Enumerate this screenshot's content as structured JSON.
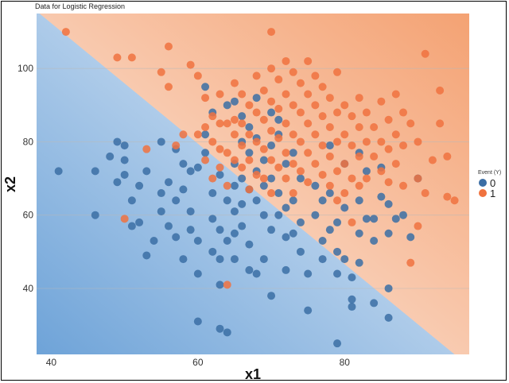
{
  "chart_data": {
    "type": "scatter",
    "title": "Data for Logistic Regression",
    "xlabel": "x1",
    "ylabel": "x2",
    "xlim": [
      38,
      97
    ],
    "ylim": [
      22,
      115
    ],
    "x_ticks": [
      40,
      60,
      80
    ],
    "y_ticks": [
      40,
      60,
      80,
      100
    ],
    "grid": "horizontal",
    "legend": {
      "title": "Event (Y)",
      "placement": "right",
      "entries": [
        "0",
        "1"
      ]
    },
    "colors": {
      "series_0": "#3b6ea5",
      "series_1": "#f0723f",
      "region_0": "#7fb0df",
      "region_1": "#f5a374"
    },
    "decision_boundary": {
      "points": [
        [
          39,
          114
        ],
        [
          95,
          22
        ]
      ]
    },
    "series": [
      {
        "name": "0",
        "points": [
          [
            41,
            72
          ],
          [
            46,
            72
          ],
          [
            46,
            60
          ],
          [
            48,
            76
          ],
          [
            49,
            80
          ],
          [
            50,
            79
          ],
          [
            50,
            71
          ],
          [
            49,
            69
          ],
          [
            50,
            75
          ],
          [
            51,
            57
          ],
          [
            51,
            64
          ],
          [
            52,
            68
          ],
          [
            52,
            58
          ],
          [
            53,
            72
          ],
          [
            53,
            49
          ],
          [
            54,
            53
          ],
          [
            55,
            80
          ],
          [
            55,
            61
          ],
          [
            55,
            66
          ],
          [
            56,
            69
          ],
          [
            56,
            57
          ],
          [
            57,
            78
          ],
          [
            57,
            54
          ],
          [
            57,
            64
          ],
          [
            58,
            74
          ],
          [
            58,
            67
          ],
          [
            58,
            48
          ],
          [
            59,
            61
          ],
          [
            59,
            56
          ],
          [
            59,
            72
          ],
          [
            60,
            73
          ],
          [
            60,
            53
          ],
          [
            60,
            44
          ],
          [
            60,
            31
          ],
          [
            61,
            82
          ],
          [
            61,
            77
          ],
          [
            61,
            95
          ],
          [
            62,
            66
          ],
          [
            62,
            59
          ],
          [
            62,
            50
          ],
          [
            62,
            88
          ],
          [
            63,
            71
          ],
          [
            63,
            56
          ],
          [
            63,
            48
          ],
          [
            63,
            41
          ],
          [
            63,
            29
          ],
          [
            64,
            90
          ],
          [
            64,
            64
          ],
          [
            64,
            53
          ],
          [
            64,
            28
          ],
          [
            65,
            74
          ],
          [
            65,
            68
          ],
          [
            65,
            61
          ],
          [
            65,
            55
          ],
          [
            65,
            48
          ],
          [
            65,
            91
          ],
          [
            66,
            87
          ],
          [
            66,
            80
          ],
          [
            66,
            70
          ],
          [
            66,
            63
          ],
          [
            66,
            57
          ],
          [
            67,
            84
          ],
          [
            67,
            77
          ],
          [
            67,
            67
          ],
          [
            67,
            52
          ],
          [
            67,
            45
          ],
          [
            68,
            81
          ],
          [
            68,
            72
          ],
          [
            68,
            64
          ],
          [
            68,
            92
          ],
          [
            68,
            44
          ],
          [
            69,
            75
          ],
          [
            69,
            68
          ],
          [
            69,
            60
          ],
          [
            69,
            48
          ],
          [
            70,
            88
          ],
          [
            70,
            79
          ],
          [
            70,
            70
          ],
          [
            70,
            56
          ],
          [
            70,
            38
          ],
          [
            71,
            86
          ],
          [
            71,
            82
          ],
          [
            71,
            66
          ],
          [
            71,
            60
          ],
          [
            72,
            74
          ],
          [
            72,
            62
          ],
          [
            72,
            54
          ],
          [
            72,
            45
          ],
          [
            73,
            77
          ],
          [
            73,
            64
          ],
          [
            73,
            55
          ],
          [
            74,
            70
          ],
          [
            74,
            58
          ],
          [
            74,
            50
          ],
          [
            75,
            44
          ],
          [
            75,
            34
          ],
          [
            76,
            60
          ],
          [
            76,
            68
          ],
          [
            77,
            64
          ],
          [
            77,
            53
          ],
          [
            77,
            48
          ],
          [
            78,
            56
          ],
          [
            78,
            66
          ],
          [
            78,
            79
          ],
          [
            79,
            58
          ],
          [
            79,
            50
          ],
          [
            79,
            44
          ],
          [
            79,
            25
          ],
          [
            80,
            62
          ],
          [
            80,
            74
          ],
          [
            80,
            48
          ],
          [
            81,
            37
          ],
          [
            81,
            43
          ],
          [
            81,
            35
          ],
          [
            82,
            77
          ],
          [
            82,
            64
          ],
          [
            82,
            55
          ],
          [
            82,
            47
          ],
          [
            83,
            59
          ],
          [
            83,
            72
          ],
          [
            84,
            59
          ],
          [
            84,
            53
          ],
          [
            84,
            36
          ],
          [
            85,
            73
          ],
          [
            85,
            65
          ],
          [
            86,
            63
          ],
          [
            86,
            55
          ],
          [
            86,
            40
          ],
          [
            86,
            32
          ],
          [
            87,
            59
          ],
          [
            88,
            60
          ],
          [
            89,
            54
          ],
          [
            90,
            70
          ]
        ]
      },
      {
        "name": "1",
        "points": [
          [
            42,
            110
          ],
          [
            49,
            103
          ],
          [
            50,
            59
          ],
          [
            51,
            103
          ],
          [
            53,
            78
          ],
          [
            55,
            99
          ],
          [
            56,
            106
          ],
          [
            56,
            95
          ],
          [
            57,
            79
          ],
          [
            58,
            82
          ],
          [
            59,
            101
          ],
          [
            60,
            82
          ],
          [
            60,
            98
          ],
          [
            61,
            92
          ],
          [
            61,
            84
          ],
          [
            61,
            75
          ],
          [
            62,
            87
          ],
          [
            62,
            80
          ],
          [
            62,
            70
          ],
          [
            63,
            93
          ],
          [
            63,
            85
          ],
          [
            63,
            78
          ],
          [
            63,
            73
          ],
          [
            64,
            85
          ],
          [
            64,
            77
          ],
          [
            64,
            68
          ],
          [
            64,
            41
          ],
          [
            65,
            96
          ],
          [
            65,
            86
          ],
          [
            65,
            82
          ],
          [
            65,
            75
          ],
          [
            66,
            93
          ],
          [
            66,
            85
          ],
          [
            66,
            79
          ],
          [
            66,
            73
          ],
          [
            67,
            90
          ],
          [
            67,
            82
          ],
          [
            67,
            75
          ],
          [
            67,
            67
          ],
          [
            68,
            98
          ],
          [
            68,
            88
          ],
          [
            68,
            80
          ],
          [
            68,
            71
          ],
          [
            69,
            94
          ],
          [
            69,
            86
          ],
          [
            69,
            78
          ],
          [
            69,
            70
          ],
          [
            70,
            110
          ],
          [
            70,
            100
          ],
          [
            70,
            91
          ],
          [
            70,
            83
          ],
          [
            70,
            75
          ],
          [
            70,
            66
          ],
          [
            71,
            97
          ],
          [
            71,
            89
          ],
          [
            71,
            81
          ],
          [
            71,
            73
          ],
          [
            72,
            102
          ],
          [
            72,
            93
          ],
          [
            72,
            85
          ],
          [
            72,
            77
          ],
          [
            72,
            70
          ],
          [
            73,
            99
          ],
          [
            73,
            90
          ],
          [
            73,
            82
          ],
          [
            73,
            74
          ],
          [
            73,
            66
          ],
          [
            74,
            96
          ],
          [
            74,
            88
          ],
          [
            74,
            80
          ],
          [
            74,
            72
          ],
          [
            75,
            102
          ],
          [
            75,
            93
          ],
          [
            75,
            85
          ],
          [
            75,
            77
          ],
          [
            75,
            69
          ],
          [
            76,
            98
          ],
          [
            76,
            90
          ],
          [
            76,
            82
          ],
          [
            76,
            74
          ],
          [
            77,
            95
          ],
          [
            77,
            87
          ],
          [
            77,
            79
          ],
          [
            77,
            71
          ],
          [
            78,
            92
          ],
          [
            78,
            84
          ],
          [
            78,
            76
          ],
          [
            78,
            68
          ],
          [
            79,
            99
          ],
          [
            79,
            88
          ],
          [
            79,
            80
          ],
          [
            79,
            72
          ],
          [
            79,
            64
          ],
          [
            80,
            90
          ],
          [
            80,
            82
          ],
          [
            80,
            74
          ],
          [
            80,
            66
          ],
          [
            81,
            87
          ],
          [
            81,
            79
          ],
          [
            81,
            70
          ],
          [
            81,
            58
          ],
          [
            82,
            92
          ],
          [
            82,
            84
          ],
          [
            82,
            76
          ],
          [
            82,
            68
          ],
          [
            83,
            88
          ],
          [
            83,
            80
          ],
          [
            83,
            70
          ],
          [
            84,
            84
          ],
          [
            84,
            76
          ],
          [
            85,
            91
          ],
          [
            85,
            80
          ],
          [
            85,
            72
          ],
          [
            86,
            86
          ],
          [
            86,
            78
          ],
          [
            86,
            69
          ],
          [
            87,
            93
          ],
          [
            87,
            82
          ],
          [
            87,
            74
          ],
          [
            88,
            88
          ],
          [
            88,
            79
          ],
          [
            88,
            68
          ],
          [
            89,
            85
          ],
          [
            89,
            47
          ],
          [
            90,
            80
          ],
          [
            90,
            70
          ],
          [
            90,
            57
          ],
          [
            91,
            104
          ],
          [
            91,
            66
          ],
          [
            92,
            75
          ],
          [
            93,
            94
          ],
          [
            93,
            85
          ],
          [
            94,
            76
          ],
          [
            94,
            65
          ],
          [
            95,
            64
          ]
        ]
      }
    ]
  }
}
